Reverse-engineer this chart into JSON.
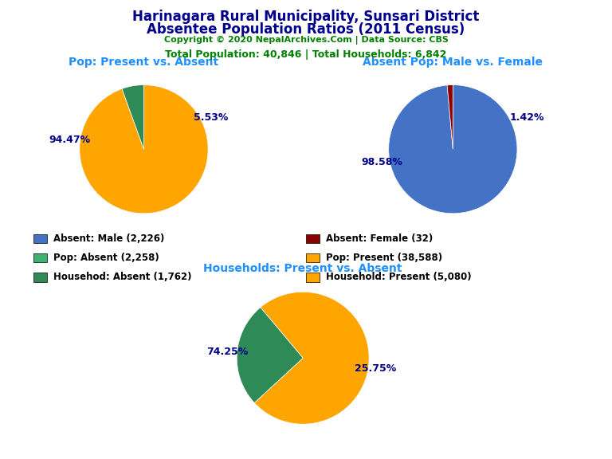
{
  "title_line1": "Harinagara Rural Municipality, Sunsari District",
  "title_line2": "Absentee Population Ratios (2011 Census)",
  "copyright": "Copyright © 2020 NepalArchives.Com | Data Source: CBS",
  "stats": "Total Population: 40,846 | Total Households: 6,842",
  "title_color": "#00008B",
  "copyright_color": "#008000",
  "stats_color": "#008000",
  "pie1_title": "Pop: Present vs. Absent",
  "pie1_values": [
    38588,
    2258
  ],
  "pie1_colors": [
    "#FFA500",
    "#2E8B57"
  ],
  "pie1_labels": [
    "94.47%",
    "5.53%"
  ],
  "pie2_title": "Absent Pop: Male vs. Female",
  "pie2_values": [
    2226,
    32
  ],
  "pie2_colors": [
    "#4472C4",
    "#8B0000"
  ],
  "pie2_labels": [
    "98.58%",
    "1.42%"
  ],
  "pie3_title": "Households: Present vs. Absent",
  "pie3_values": [
    5080,
    1762
  ],
  "pie3_colors": [
    "#FFA500",
    "#2E8B57"
  ],
  "pie3_labels": [
    "74.25%",
    "25.75%"
  ],
  "legend_items": [
    {
      "label": "Absent: Male (2,226)",
      "color": "#4472C4"
    },
    {
      "label": "Absent: Female (32)",
      "color": "#8B0000"
    },
    {
      "label": "Pop: Absent (2,258)",
      "color": "#3CB371"
    },
    {
      "label": "Pop: Present (38,588)",
      "color": "#FFA500"
    },
    {
      "label": "Househod: Absent (1,762)",
      "color": "#2E8B57"
    },
    {
      "label": "Household: Present (5,080)",
      "color": "#FFA500"
    }
  ],
  "background_color": "#FFFFFF",
  "label_color": "#00008B",
  "label_fontsize": 9,
  "subtitle_fontsize": 10,
  "title_fontsize": 12,
  "shadow_color": "#B8600A"
}
